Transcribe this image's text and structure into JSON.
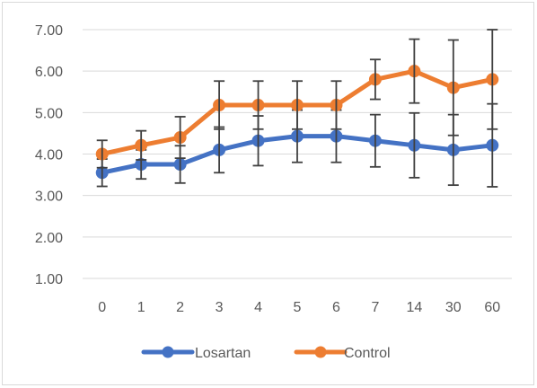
{
  "chart_data": {
    "type": "line",
    "categories": [
      "0",
      "1",
      "2",
      "3",
      "4",
      "5",
      "6",
      "7",
      "14",
      "30",
      "60"
    ],
    "ylim": [
      1.0,
      7.0
    ],
    "yticks": [
      "1.00",
      "2.00",
      "3.00",
      "4.00",
      "5.00",
      "6.00",
      "7.00"
    ],
    "grid": true,
    "legend_position": "bottom",
    "series": [
      {
        "name": "Losartan",
        "color": "#4472C4",
        "values": [
          3.55,
          3.75,
          3.75,
          4.1,
          4.32,
          4.43,
          4.43,
          4.32,
          4.21,
          4.1,
          4.21
        ],
        "error": [
          0.33,
          0.35,
          0.45,
          0.55,
          0.6,
          0.63,
          0.63,
          0.63,
          0.78,
          0.85,
          1.0
        ]
      },
      {
        "name": "Control",
        "color": "#ED7D31",
        "values": [
          4.0,
          4.21,
          4.4,
          5.18,
          5.18,
          5.18,
          5.18,
          5.8,
          6.0,
          5.6,
          5.8
        ],
        "error": [
          0.33,
          0.35,
          0.5,
          0.58,
          0.58,
          0.58,
          0.58,
          0.48,
          0.77,
          1.15,
          1.2
        ]
      }
    ]
  }
}
